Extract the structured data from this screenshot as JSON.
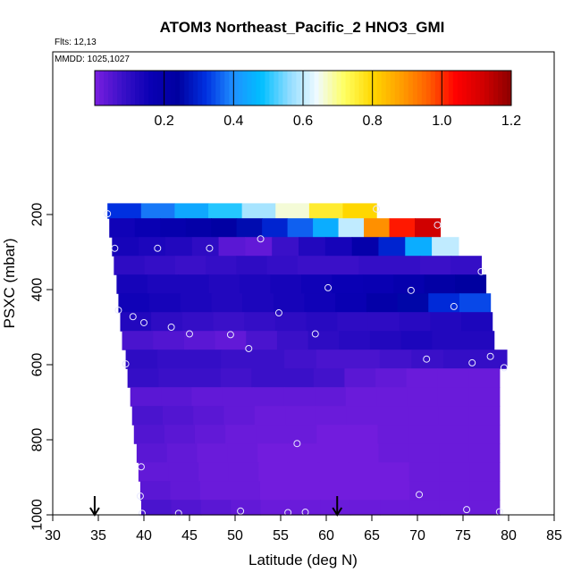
{
  "chart_data": {
    "type": "heatmap",
    "title": "ATOM3 Northeast_Pacific_2 HNO3_GMI",
    "flights_label": "Flts: 12,13",
    "dates_label": "MMDD: 1025,1027",
    "xlabel": "Latitude (deg N)",
    "ylabel": "PSXC (mbar)",
    "xlim": [
      30,
      85
    ],
    "ylim": [
      1000,
      0
    ],
    "x_ticks": [
      "30",
      "35",
      "40",
      "45",
      "50",
      "55",
      "60",
      "65",
      "70",
      "75",
      "80",
      "85"
    ],
    "y_ticks": [
      "200",
      "400",
      "600",
      "800",
      "1000"
    ],
    "colorbar": {
      "range": [
        0,
        1.2
      ],
      "tick_labels": [
        "0.2",
        "0.4",
        "0.6",
        "0.8",
        "1.0",
        "1.2"
      ],
      "colors": [
        "#7a1ee0",
        "#3a10c8",
        "#0a00b4",
        "#0000a0",
        "#0030e0",
        "#1e90ff",
        "#00bfff",
        "#8fdcff",
        "#f0faff",
        "#ffff60",
        "#ffd700",
        "#ffa000",
        "#ff6000",
        "#ff0000",
        "#d00000",
        "#8b0000"
      ]
    },
    "arrows_at_lat": [
      34.6,
      61.2
    ],
    "levels": [
      {
        "p_top": 170,
        "p_bot": 210,
        "lat_start": 36.0,
        "lat_end": 65.5,
        "values": [
          0.32,
          0.38,
          0.44,
          0.5,
          0.58,
          0.66,
          0.76,
          0.8
        ]
      },
      {
        "p_top": 210,
        "p_bot": 260,
        "lat_start": 36.2,
        "lat_end": 72.5,
        "values": [
          0.15,
          0.17,
          0.19,
          0.21,
          0.23,
          0.26,
          0.3,
          0.36,
          0.45,
          0.6,
          0.9,
          1.02,
          1.12
        ]
      },
      {
        "p_top": 260,
        "p_bot": 310,
        "lat_start": 36.5,
        "lat_end": 74.5,
        "values": [
          0.14,
          0.13,
          0.12,
          0.1,
          0.04,
          0.03,
          0.08,
          0.12,
          0.14,
          0.2,
          0.3,
          0.45,
          0.6
        ]
      },
      {
        "p_top": 310,
        "p_bot": 360,
        "lat_start": 36.7,
        "lat_end": 77.0,
        "values": [
          0.1,
          0.09,
          0.08,
          0.09,
          0.1,
          0.09,
          0.08,
          0.08,
          0.09,
          0.09,
          0.08,
          0.09
        ]
      },
      {
        "p_top": 360,
        "p_bot": 410,
        "lat_start": 37.0,
        "lat_end": 77.5,
        "values": [
          0.14,
          0.13,
          0.13,
          0.12,
          0.13,
          0.14,
          0.15,
          0.16,
          0.17,
          0.19,
          0.22,
          0.24
        ]
      },
      {
        "p_top": 410,
        "p_bot": 460,
        "lat_start": 37.2,
        "lat_end": 78.0,
        "values": [
          0.15,
          0.14,
          0.13,
          0.12,
          0.13,
          0.14,
          0.15,
          0.17,
          0.21,
          0.25,
          0.31,
          0.34
        ]
      },
      {
        "p_top": 460,
        "p_bot": 510,
        "lat_start": 37.4,
        "lat_end": 78.2,
        "values": [
          0.12,
          0.1,
          0.09,
          0.08,
          0.09,
          0.1,
          0.11,
          0.1,
          0.1,
          0.11,
          0.12,
          0.13
        ]
      },
      {
        "p_top": 510,
        "p_bot": 560,
        "lat_start": 37.6,
        "lat_end": 78.4,
        "values": [
          0.06,
          0.05,
          0.04,
          0.03,
          0.06,
          0.08,
          0.1,
          0.11,
          0.12,
          0.13,
          0.12,
          0.12
        ]
      },
      {
        "p_top": 560,
        "p_bot": 610,
        "lat_start": 38.0,
        "lat_end": 79.8,
        "values": [
          0.1,
          0.09,
          0.09,
          0.08,
          0.08,
          0.07,
          0.06,
          0.06,
          0.07,
          0.08,
          0.09,
          0.09
        ]
      },
      {
        "p_top": 610,
        "p_bot": 660,
        "lat_start": 38.2,
        "lat_end": 79.0,
        "values": [
          0.09,
          0.08,
          0.08,
          0.07,
          0.08,
          0.08,
          0.07,
          0.04,
          0.03,
          0.02,
          0.02,
          0.02
        ]
      },
      {
        "p_top": 660,
        "p_bot": 710,
        "lat_start": 38.5,
        "lat_end": 79.0,
        "values": [
          0.04,
          0.04,
          0.03,
          0.03,
          0.03,
          0.03,
          0.03,
          0.02,
          0.02,
          0.02,
          0.02,
          0.02
        ]
      },
      {
        "p_top": 710,
        "p_bot": 760,
        "lat_start": 38.7,
        "lat_end": 79.0,
        "values": [
          0.06,
          0.05,
          0.04,
          0.03,
          0.02,
          0.02,
          0.02,
          0.02,
          0.02,
          0.02,
          0.02,
          0.02
        ]
      },
      {
        "p_top": 760,
        "p_bot": 810,
        "lat_start": 38.9,
        "lat_end": 79.0,
        "values": [
          0.05,
          0.04,
          0.03,
          0.02,
          0.02,
          0.02,
          0.01,
          0.01,
          0.02,
          0.02,
          0.02,
          0.02
        ]
      },
      {
        "p_top": 810,
        "p_bot": 860,
        "lat_start": 39.2,
        "lat_end": 79.0,
        "values": [
          0.04,
          0.03,
          0.02,
          0.02,
          0.01,
          0.01,
          0.01,
          0.01,
          0.02,
          0.02,
          0.02,
          0.02
        ]
      },
      {
        "p_top": 860,
        "p_bot": 910,
        "lat_start": 39.4,
        "lat_end": 79.0,
        "values": [
          0.03,
          0.03,
          0.02,
          0.02,
          0.01,
          0.01,
          0.01,
          0.01,
          0.01,
          0.02,
          0.02,
          0.02
        ]
      },
      {
        "p_top": 910,
        "p_bot": 960,
        "lat_start": 39.6,
        "lat_end": 79.0,
        "values": [
          0.04,
          0.03,
          0.02,
          0.02,
          0.01,
          0.01,
          0.01,
          0.01,
          0.01,
          0.02,
          0.02,
          0.02
        ]
      },
      {
        "p_top": 960,
        "p_bot": 1000,
        "lat_start": 39.7,
        "lat_end": 79.0,
        "values": [
          0.06,
          0.05,
          0.04,
          0.03,
          0.02,
          0.02,
          0.02,
          0.02,
          0.02,
          0.02,
          0.02,
          0.02
        ]
      }
    ],
    "obs_points": [
      {
        "lat": 36.0,
        "p": 198
      },
      {
        "lat": 65.5,
        "p": 185
      },
      {
        "lat": 72.2,
        "p": 228
      },
      {
        "lat": 36.8,
        "p": 290
      },
      {
        "lat": 41.5,
        "p": 290
      },
      {
        "lat": 47.2,
        "p": 290
      },
      {
        "lat": 52.8,
        "p": 265
      },
      {
        "lat": 77.0,
        "p": 352
      },
      {
        "lat": 60.2,
        "p": 395
      },
      {
        "lat": 69.3,
        "p": 402
      },
      {
        "lat": 37.2,
        "p": 455
      },
      {
        "lat": 38.8,
        "p": 472
      },
      {
        "lat": 40.0,
        "p": 488
      },
      {
        "lat": 43.0,
        "p": 500
      },
      {
        "lat": 54.8,
        "p": 462
      },
      {
        "lat": 74.0,
        "p": 445
      },
      {
        "lat": 45.0,
        "p": 518
      },
      {
        "lat": 49.5,
        "p": 520
      },
      {
        "lat": 58.8,
        "p": 518
      },
      {
        "lat": 51.5,
        "p": 557
      },
      {
        "lat": 38.0,
        "p": 598
      },
      {
        "lat": 71.0,
        "p": 585
      },
      {
        "lat": 76.0,
        "p": 595
      },
      {
        "lat": 78.0,
        "p": 578
      },
      {
        "lat": 79.5,
        "p": 608
      },
      {
        "lat": 56.8,
        "p": 810
      },
      {
        "lat": 39.7,
        "p": 872
      },
      {
        "lat": 39.6,
        "p": 950
      },
      {
        "lat": 70.2,
        "p": 946
      },
      {
        "lat": 39.8,
        "p": 996
      },
      {
        "lat": 43.8,
        "p": 996
      },
      {
        "lat": 50.6,
        "p": 990
      },
      {
        "lat": 55.8,
        "p": 994
      },
      {
        "lat": 57.7,
        "p": 993
      },
      {
        "lat": 75.4,
        "p": 986
      },
      {
        "lat": 79.0,
        "p": 992
      }
    ]
  }
}
